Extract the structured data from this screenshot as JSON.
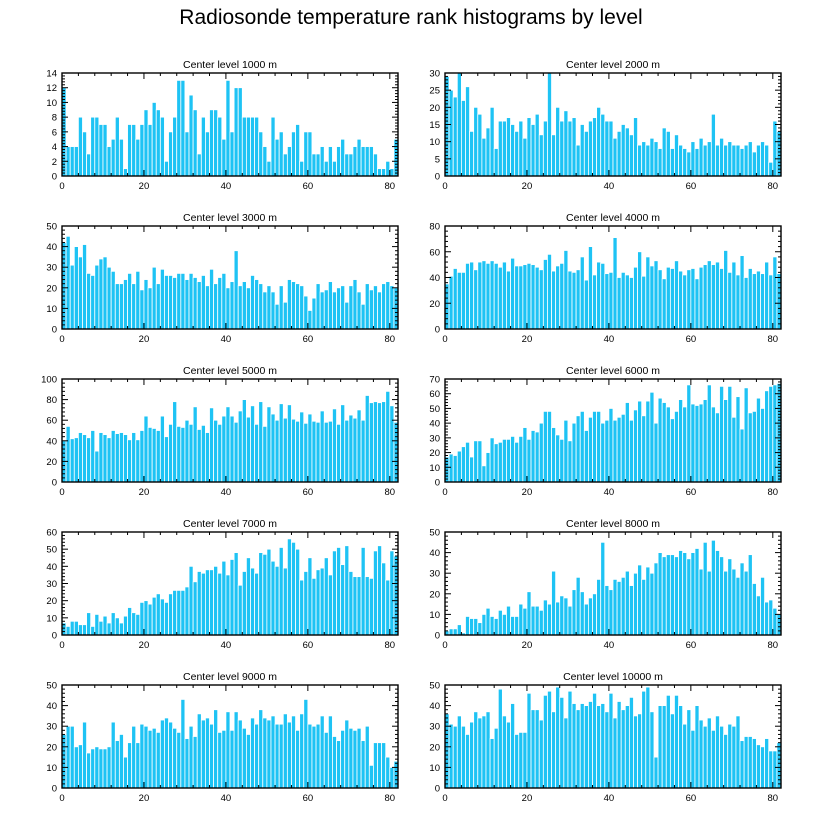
{
  "title": "Radiosonde temperature rank histograms by level",
  "chart_data": [
    {
      "type": "bar",
      "title": "Center level 1000 m",
      "xlim": [
        0,
        82
      ],
      "xticks": [
        0,
        20,
        40,
        60,
        80
      ],
      "ylim": [
        0,
        14
      ],
      "yticks": [
        0,
        2,
        4,
        6,
        8,
        10,
        12,
        14
      ],
      "values": [
        12,
        4,
        4,
        4,
        8,
        6,
        3,
        8,
        8,
        7,
        7,
        4,
        5,
        8,
        5,
        1,
        7,
        7,
        5,
        7,
        9,
        7,
        10,
        9,
        8,
        2,
        6,
        8,
        13,
        13,
        6,
        11,
        9,
        3,
        8,
        6,
        9,
        9,
        8,
        5,
        13,
        6,
        12,
        12,
        8,
        8,
        8,
        8,
        6,
        4,
        2,
        8,
        5,
        6,
        3,
        4,
        6,
        7,
        2,
        6,
        6,
        3,
        3,
        4,
        2,
        4,
        2,
        4,
        5,
        3,
        3,
        4,
        5,
        4,
        4,
        4,
        3,
        1,
        1,
        2,
        1,
        5
      ]
    },
    {
      "type": "bar",
      "title": "Center level 2000 m",
      "xlim": [
        0,
        82
      ],
      "xticks": [
        0,
        20,
        40,
        60,
        80
      ],
      "ylim": [
        0,
        30
      ],
      "yticks": [
        0,
        5,
        10,
        15,
        20,
        25,
        30
      ],
      "values": [
        29,
        25,
        23,
        30,
        22,
        26,
        13,
        20,
        18,
        11,
        14,
        20,
        8,
        16,
        16,
        17,
        15,
        13,
        16,
        11,
        17,
        15,
        18,
        12,
        16,
        30,
        12,
        20,
        16,
        19,
        16,
        17,
        9,
        15,
        13,
        16,
        17,
        20,
        18,
        16,
        16,
        11,
        13,
        15,
        14,
        12,
        17,
        9,
        10,
        9,
        11,
        10,
        8,
        14,
        13,
        8,
        12,
        9,
        8,
        7,
        10,
        8,
        11,
        9,
        10,
        18,
        9,
        11,
        9,
        10,
        9,
        9,
        8,
        9,
        10,
        7,
        9,
        10,
        9,
        4,
        16,
        13
      ]
    },
    {
      "type": "bar",
      "title": "Center level 3000 m",
      "xlim": [
        0,
        82
      ],
      "xticks": [
        0,
        20,
        40,
        60,
        80
      ],
      "ylim": [
        0,
        50
      ],
      "yticks": [
        0,
        10,
        20,
        30,
        40,
        50
      ],
      "values": [
        42,
        45,
        31,
        40,
        35,
        41,
        27,
        26,
        31,
        34,
        35,
        30,
        28,
        22,
        22,
        24,
        27,
        22,
        28,
        19,
        24,
        20,
        30,
        22,
        29,
        26,
        26,
        25,
        27,
        27,
        24,
        27,
        25,
        23,
        26,
        21,
        29,
        22,
        25,
        27,
        20,
        23,
        38,
        21,
        23,
        20,
        26,
        24,
        22,
        18,
        21,
        18,
        12,
        21,
        13,
        24,
        23,
        22,
        21,
        16,
        9,
        15,
        22,
        18,
        19,
        23,
        18,
        20,
        21,
        13,
        21,
        24,
        18,
        12,
        22,
        19,
        21,
        18,
        22,
        23,
        21,
        20
      ]
    },
    {
      "type": "bar",
      "title": "Center level 4000 m",
      "xlim": [
        0,
        82
      ],
      "xticks": [
        0,
        20,
        40,
        60,
        80
      ],
      "ylim": [
        0,
        80
      ],
      "yticks": [
        0,
        20,
        40,
        60,
        80
      ],
      "values": [
        35,
        41,
        47,
        44,
        44,
        51,
        52,
        46,
        52,
        53,
        51,
        53,
        51,
        48,
        52,
        45,
        55,
        49,
        49,
        50,
        51,
        50,
        48,
        46,
        54,
        58,
        45,
        49,
        51,
        61,
        45,
        44,
        46,
        56,
        38,
        64,
        42,
        52,
        51,
        43,
        44,
        71,
        40,
        44,
        42,
        40,
        48,
        60,
        41,
        56,
        49,
        53,
        46,
        39,
        48,
        47,
        53,
        45,
        42,
        46,
        47,
        39,
        48,
        50,
        53,
        50,
        52,
        47,
        61,
        44,
        52,
        42,
        57,
        40,
        47,
        43,
        45,
        43,
        52,
        42,
        56,
        43
      ]
    },
    {
      "type": "bar",
      "title": "Center level 5000 m",
      "xlim": [
        0,
        82
      ],
      "xticks": [
        0,
        20,
        40,
        60,
        80
      ],
      "ylim": [
        0,
        100
      ],
      "yticks": [
        0,
        20,
        40,
        60,
        80,
        100
      ],
      "values": [
        40,
        54,
        42,
        43,
        48,
        46,
        43,
        50,
        30,
        48,
        46,
        43,
        50,
        47,
        48,
        46,
        41,
        48,
        41,
        50,
        64,
        53,
        52,
        50,
        64,
        44,
        56,
        78,
        54,
        53,
        60,
        56,
        73,
        51,
        55,
        48,
        72,
        60,
        56,
        64,
        73,
        64,
        58,
        69,
        80,
        63,
        74,
        56,
        78,
        54,
        73,
        66,
        60,
        76,
        62,
        75,
        61,
        59,
        68,
        57,
        66,
        59,
        58,
        69,
        58,
        59,
        71,
        56,
        75,
        60,
        65,
        62,
        70,
        60,
        84,
        77,
        78,
        77,
        78,
        88,
        74,
        58
      ]
    },
    {
      "type": "bar",
      "title": "Center level 6000 m",
      "xlim": [
        0,
        82
      ],
      "xticks": [
        0,
        20,
        40,
        60,
        80
      ],
      "ylim": [
        0,
        70
      ],
      "yticks": [
        0,
        10,
        20,
        30,
        40,
        50,
        60,
        70
      ],
      "values": [
        17,
        19,
        18,
        21,
        24,
        27,
        17,
        28,
        28,
        11,
        20,
        30,
        26,
        27,
        29,
        29,
        31,
        27,
        31,
        37,
        29,
        35,
        34,
        40,
        48,
        48,
        37,
        32,
        29,
        42,
        28,
        40,
        45,
        48,
        35,
        44,
        48,
        48,
        40,
        42,
        50,
        42,
        44,
        46,
        54,
        42,
        49,
        55,
        45,
        55,
        61,
        40,
        57,
        54,
        51,
        43,
        48,
        56,
        51,
        66,
        53,
        52,
        53,
        56,
        66,
        51,
        47,
        65,
        56,
        65,
        44,
        58,
        36,
        64,
        47,
        48,
        57,
        50,
        62,
        65,
        66,
        67
      ]
    },
    {
      "type": "bar",
      "title": "Center level 7000 m",
      "xlim": [
        0,
        82
      ],
      "xticks": [
        0,
        20,
        40,
        60,
        80
      ],
      "ylim": [
        0,
        60
      ],
      "yticks": [
        0,
        10,
        20,
        30,
        40,
        50,
        60
      ],
      "values": [
        7,
        5,
        8,
        8,
        6,
        6,
        13,
        5,
        12,
        8,
        11,
        7,
        13,
        10,
        7,
        11,
        16,
        13,
        12,
        19,
        20,
        18,
        22,
        24,
        21,
        19,
        24,
        26,
        26,
        26,
        28,
        40,
        31,
        37,
        36,
        38,
        38,
        40,
        36,
        43,
        35,
        44,
        48,
        29,
        37,
        45,
        39,
        36,
        48,
        47,
        50,
        43,
        40,
        51,
        39,
        56,
        54,
        50,
        32,
        37,
        45,
        33,
        38,
        39,
        45,
        35,
        49,
        51,
        41,
        52,
        37,
        34,
        34,
        51,
        34,
        33,
        49,
        52,
        42,
        32,
        49,
        46
      ]
    },
    {
      "type": "bar",
      "title": "Center level 8000 m",
      "xlim": [
        0,
        82
      ],
      "xticks": [
        0,
        20,
        40,
        60,
        80
      ],
      "ylim": [
        0,
        50
      ],
      "yticks": [
        0,
        10,
        20,
        30,
        40,
        50
      ],
      "values": [
        2,
        3,
        3,
        5,
        1,
        9,
        8,
        8,
        6,
        10,
        13,
        9,
        8,
        12,
        10,
        14,
        9,
        9,
        15,
        13,
        21,
        14,
        14,
        12,
        17,
        15,
        31,
        16,
        19,
        18,
        14,
        22,
        28,
        21,
        15,
        18,
        20,
        27,
        45,
        24,
        22,
        27,
        26,
        28,
        31,
        24,
        30,
        34,
        27,
        33,
        30,
        35,
        40,
        38,
        39,
        39,
        38,
        41,
        40,
        37,
        40,
        42,
        32,
        45,
        31,
        46,
        41,
        38,
        31,
        37,
        32,
        28,
        35,
        31,
        39,
        25,
        19,
        28,
        16,
        17,
        13,
        10
      ]
    },
    {
      "type": "bar",
      "title": "Center level 9000 m",
      "xlim": [
        0,
        82
      ],
      "xticks": [
        0,
        20,
        40,
        60,
        80
      ],
      "ylim": [
        0,
        50
      ],
      "yticks": [
        0,
        10,
        20,
        30,
        40,
        50
      ],
      "values": [
        26,
        30,
        30,
        20,
        21,
        32,
        17,
        19,
        20,
        19,
        19,
        20,
        32,
        23,
        26,
        15,
        22,
        30,
        22,
        31,
        30,
        28,
        29,
        27,
        33,
        34,
        32,
        29,
        27,
        43,
        24,
        30,
        25,
        36,
        33,
        34,
        31,
        38,
        27,
        28,
        37,
        28,
        37,
        33,
        29,
        26,
        34,
        31,
        38,
        34,
        33,
        35,
        31,
        31,
        36,
        32,
        35,
        28,
        36,
        43,
        31,
        30,
        31,
        35,
        27,
        35,
        25,
        23,
        28,
        33,
        29,
        28,
        29,
        23,
        30,
        11,
        22,
        22,
        22,
        15,
        10,
        13
      ]
    },
    {
      "type": "bar",
      "title": "Center level 10000 m",
      "xlim": [
        0,
        82
      ],
      "xticks": [
        0,
        20,
        40,
        60,
        80
      ],
      "ylim": [
        0,
        50
      ],
      "yticks": [
        0,
        10,
        20,
        30,
        40,
        50
      ],
      "values": [
        36,
        31,
        30,
        35,
        30,
        26,
        32,
        37,
        34,
        35,
        37,
        24,
        29,
        48,
        35,
        32,
        41,
        26,
        27,
        27,
        46,
        38,
        38,
        33,
        45,
        47,
        37,
        49,
        44,
        34,
        47,
        41,
        38,
        41,
        40,
        42,
        46,
        40,
        41,
        37,
        46,
        34,
        42,
        38,
        40,
        44,
        35,
        36,
        47,
        49,
        37,
        15,
        40,
        40,
        45,
        36,
        45,
        40,
        31,
        38,
        28,
        40,
        33,
        30,
        34,
        28,
        35,
        30,
        26,
        31,
        30,
        35,
        23,
        25,
        25,
        24,
        21,
        20,
        24,
        18,
        18,
        22
      ]
    }
  ]
}
